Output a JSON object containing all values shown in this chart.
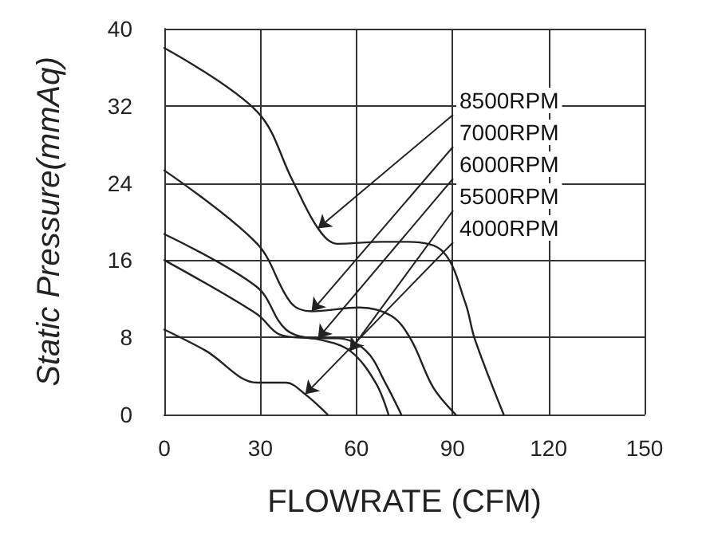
{
  "chart_data": {
    "type": "line",
    "xlabel": "FLOWRATE (CFM)",
    "ylabel": "Static Pressure(mmAq)",
    "xlim": [
      0,
      150
    ],
    "xticks": [
      0,
      30,
      60,
      90,
      120,
      150
    ],
    "ylim": [
      0,
      40
    ],
    "yticks": [
      0,
      8,
      16,
      24,
      32,
      40
    ],
    "grid": true,
    "marker": "none",
    "line_style": "solid",
    "series": [
      {
        "color": "#222222",
        "x": [
          0,
          29,
          40,
          48,
          54,
          68,
          76,
          87,
          94,
          97,
          106
        ],
        "values": [
          38,
          31.4,
          24.3,
          19.3,
          17.7,
          17.9,
          17.9,
          16.9,
          11.6,
          7.8,
          0
        ]
      },
      {
        "color": "#222222",
        "x": [
          0,
          29,
          39.5,
          46,
          61,
          71,
          77,
          84,
          91
        ],
        "values": [
          25.3,
          17.7,
          11.6,
          10.7,
          11.1,
          10.2,
          7.8,
          2.8,
          0
        ]
      },
      {
        "color": "#222222",
        "x": [
          0,
          29,
          38,
          48,
          54,
          63,
          69,
          74
        ],
        "values": [
          18.7,
          13.2,
          8.8,
          7.9,
          7.9,
          6.6,
          3.3,
          0
        ]
      },
      {
        "color": "#222222",
        "x": [
          0,
          29,
          36,
          48,
          58,
          66,
          70
        ],
        "values": [
          16,
          10.4,
          8.3,
          7.8,
          6.6,
          3.3,
          0
        ]
      },
      {
        "color": "#222222",
        "x": [
          0,
          13,
          29,
          38,
          44,
          51
        ],
        "values": [
          8.8,
          6.6,
          3.3,
          3.3,
          2.1,
          0
        ]
      }
    ],
    "annotations": [
      {
        "text": "8500RPM",
        "x": 48,
        "y": 19.3
      },
      {
        "text": "7000RPM",
        "x": 46,
        "y": 10.7
      },
      {
        "text": "6000RPM",
        "x": 48,
        "y": 7.9
      },
      {
        "text": "5500RPM",
        "x": 58,
        "y": 6.6
      },
      {
        "text": "4000RPM",
        "x": 44,
        "y": 2.1
      }
    ]
  }
}
